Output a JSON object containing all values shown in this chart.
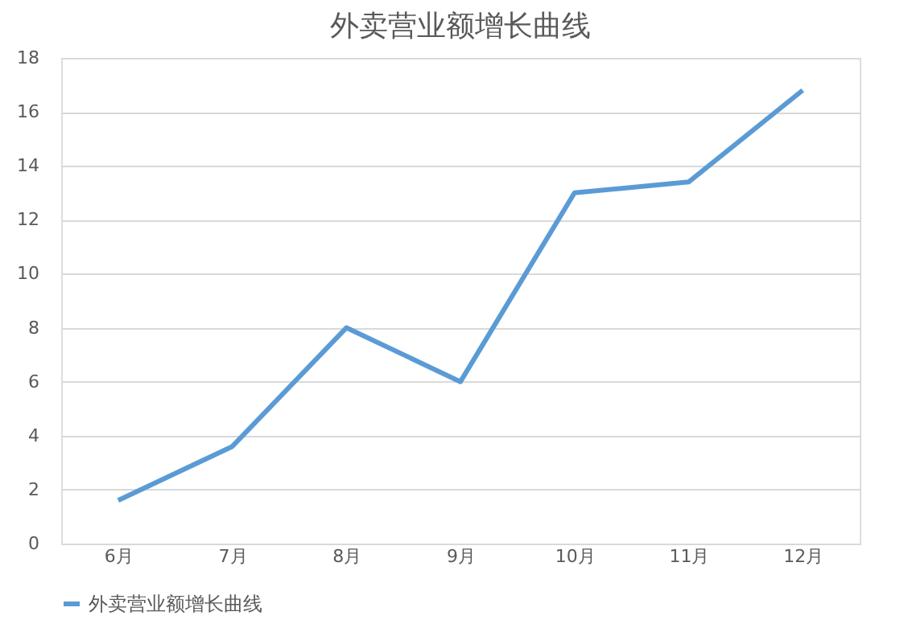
{
  "chart_data": {
    "type": "line",
    "title": "外卖营业额增长曲线",
    "categories": [
      "6月",
      "7月",
      "8月",
      "9月",
      "10月",
      "11月",
      "12月"
    ],
    "series": [
      {
        "name": "外卖营业额增长曲线",
        "color": "#5b9bd5",
        "values": [
          1.6,
          3.6,
          8.0,
          6.0,
          13.0,
          13.4,
          16.8
        ]
      }
    ],
    "ylim": [
      0,
      18
    ],
    "yticks": [
      0,
      2,
      4,
      6,
      8,
      10,
      12,
      14,
      16,
      18
    ],
    "grid": "y",
    "legend": "bottom",
    "marker": "none",
    "line_style": "solid"
  }
}
